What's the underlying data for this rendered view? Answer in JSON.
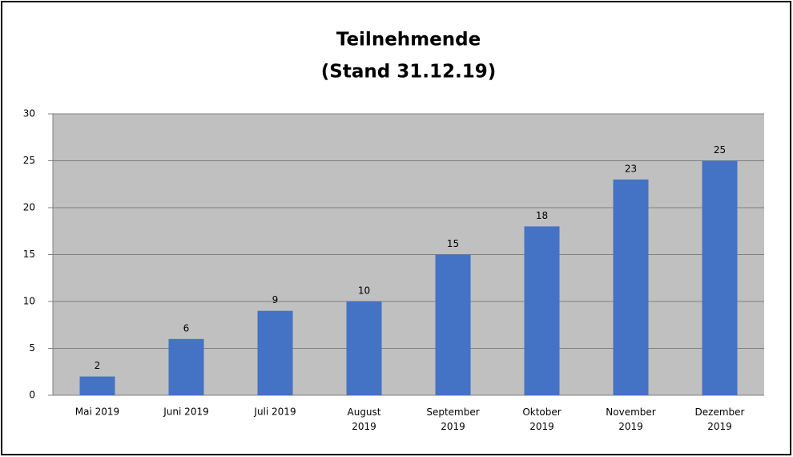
{
  "chart_data": {
    "type": "bar",
    "title": [
      "Teilnehmende",
      "(Stand 31.12.19)"
    ],
    "categories": [
      "Mai 2019",
      "Juni 2019",
      "Juli 2019",
      "August 2019",
      "September 2019",
      "Oktober 2019",
      "November 2019",
      "Dezember 2019"
    ],
    "values": [
      2,
      6,
      9,
      10,
      15,
      18,
      23,
      25
    ],
    "color": "#4472c4",
    "ylim": [
      0,
      30
    ],
    "yticks": [
      0,
      5,
      10,
      15,
      20,
      25,
      30
    ],
    "grid": true
  }
}
